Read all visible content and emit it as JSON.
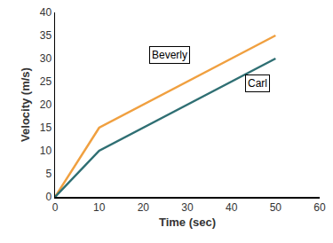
{
  "chart_data": {
    "type": "line",
    "x_label": "Time (sec)",
    "y_label": "Velocity (m/s)",
    "x": [
      0,
      10,
      50
    ],
    "series": [
      {
        "name": "Beverly",
        "color": "#f0a040",
        "values": [
          0,
          15,
          35
        ]
      },
      {
        "name": "Carl",
        "color": "#2f6f73",
        "values": [
          0,
          10,
          30
        ]
      }
    ],
    "xlim": [
      0,
      60
    ],
    "xticks": [
      0,
      10,
      20,
      30,
      40,
      50,
      60
    ],
    "ylim": [
      0,
      40
    ],
    "yticks": [
      0,
      5,
      10,
      15,
      20,
      25,
      30,
      35,
      40
    ],
    "grid": false
  }
}
